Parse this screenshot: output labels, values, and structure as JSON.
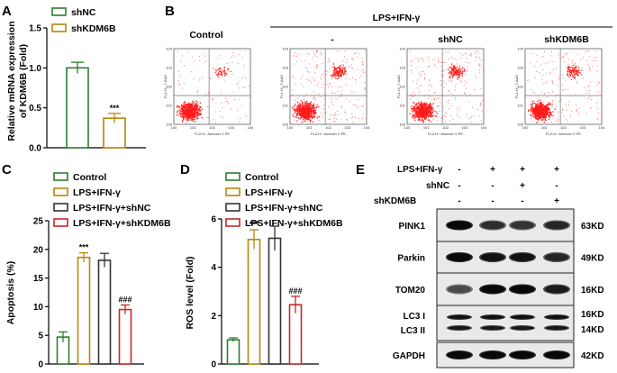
{
  "panel_labels": {
    "a": "A",
    "b": "B",
    "c": "C",
    "d": "D",
    "e": "E"
  },
  "colors": {
    "green": "#2e7d32",
    "gold": "#b8860b",
    "black": "#333333",
    "red": "#c62828",
    "dot": "#ff1a1a"
  },
  "flow": {
    "group_label": "LPS+IFN-γ",
    "titles": [
      "Control",
      "-",
      "shNC",
      "shKDM6B"
    ],
    "x_axis_label": "FL2-H:: Annexin V PE",
    "y_axis_label": "FL1-H:: 7-AAD"
  },
  "chart_data": [
    {
      "panel": "A",
      "type": "bar",
      "categories": [
        "shNC",
        "shKDM6B"
      ],
      "values": [
        1.0,
        0.37
      ],
      "errors": [
        0.07,
        0.06
      ],
      "colors": [
        "#2e7d32",
        "#b8860b"
      ],
      "annotations": [
        "",
        "***"
      ],
      "ylabel_line1": "Relative mRNA expression",
      "ylabel_line2": "of KDM6B (Fold)",
      "ylim": [
        0,
        1.5
      ],
      "yticks": [
        "0.0",
        "0.5",
        "1.0",
        "1.5"
      ],
      "legend": [
        "shNC",
        "shKDM6B"
      ]
    },
    {
      "panel": "C",
      "type": "bar",
      "categories": [
        "Control",
        "LPS+IFN-γ",
        "LPS+IFN-γ+shNC",
        "LPS+IFN-γ+shKDM6B"
      ],
      "values": [
        4.7,
        18.6,
        18.1,
        9.5
      ],
      "errors": [
        0.9,
        0.8,
        1.2,
        0.8
      ],
      "colors": [
        "#2e7d32",
        "#b8860b",
        "#333333",
        "#c62828"
      ],
      "annotations": [
        "",
        "***",
        "",
        "###"
      ],
      "ylabel": "Apoptosis (%)",
      "ylim": [
        0,
        25
      ],
      "yticks": [
        "0",
        "5",
        "10",
        "15",
        "20",
        "25"
      ],
      "legend": [
        "Control",
        "LPS+IFN-γ",
        "LPS+IFN-γ+shNC",
        "LPS+IFN-γ+shKDM6B"
      ]
    },
    {
      "panel": "D",
      "type": "bar",
      "categories": [
        "Control",
        "LPS+IFN-γ",
        "LPS+IFN-γ+shNC",
        "LPS+IFN-γ+shKDM6B"
      ],
      "values": [
        1.0,
        5.15,
        5.2,
        2.45
      ],
      "errors": [
        0.08,
        0.4,
        0.5,
        0.35
      ],
      "colors": [
        "#2e7d32",
        "#b8860b",
        "#333333",
        "#c62828"
      ],
      "annotations": [
        "",
        "***",
        "",
        "###"
      ],
      "ylabel": "ROS level (Fold)",
      "ylim": [
        0,
        6
      ],
      "yticks": [
        "0",
        "2",
        "4",
        "6"
      ],
      "legend": [
        "Control",
        "LPS+IFN-γ",
        "LPS+IFN-γ+shNC",
        "LPS+IFN-γ+shKDM6B"
      ]
    }
  ],
  "western": {
    "conditions": [
      {
        "name": "LPS+IFN-γ",
        "marks": [
          "-",
          "+",
          "+",
          "+"
        ]
      },
      {
        "name": "shNC",
        "marks": [
          "-",
          "-",
          "+",
          "-"
        ]
      },
      {
        "name": "shKDM6B",
        "marks": [
          "-",
          "-",
          "-",
          "+"
        ]
      }
    ],
    "blots": [
      {
        "protein": "PINK1",
        "size": "63KD",
        "intensity": [
          0.95,
          0.55,
          0.5,
          0.6
        ]
      },
      {
        "protein": "Parkin",
        "size": "49KD",
        "intensity": [
          0.95,
          0.8,
          0.8,
          0.6
        ]
      },
      {
        "protein": "TOM20",
        "size": "16KD",
        "intensity": [
          0.35,
          0.95,
          0.95,
          0.7
        ]
      },
      {
        "protein": "LC3 I",
        "protein2": "LC3 II",
        "size": "16KD",
        "size2": "14KD",
        "intensity": [
          0.85,
          0.85,
          0.85,
          0.85
        ]
      },
      {
        "protein": "GAPDH",
        "size": "42KD",
        "intensity": [
          0.95,
          0.95,
          0.95,
          0.95
        ]
      }
    ]
  }
}
